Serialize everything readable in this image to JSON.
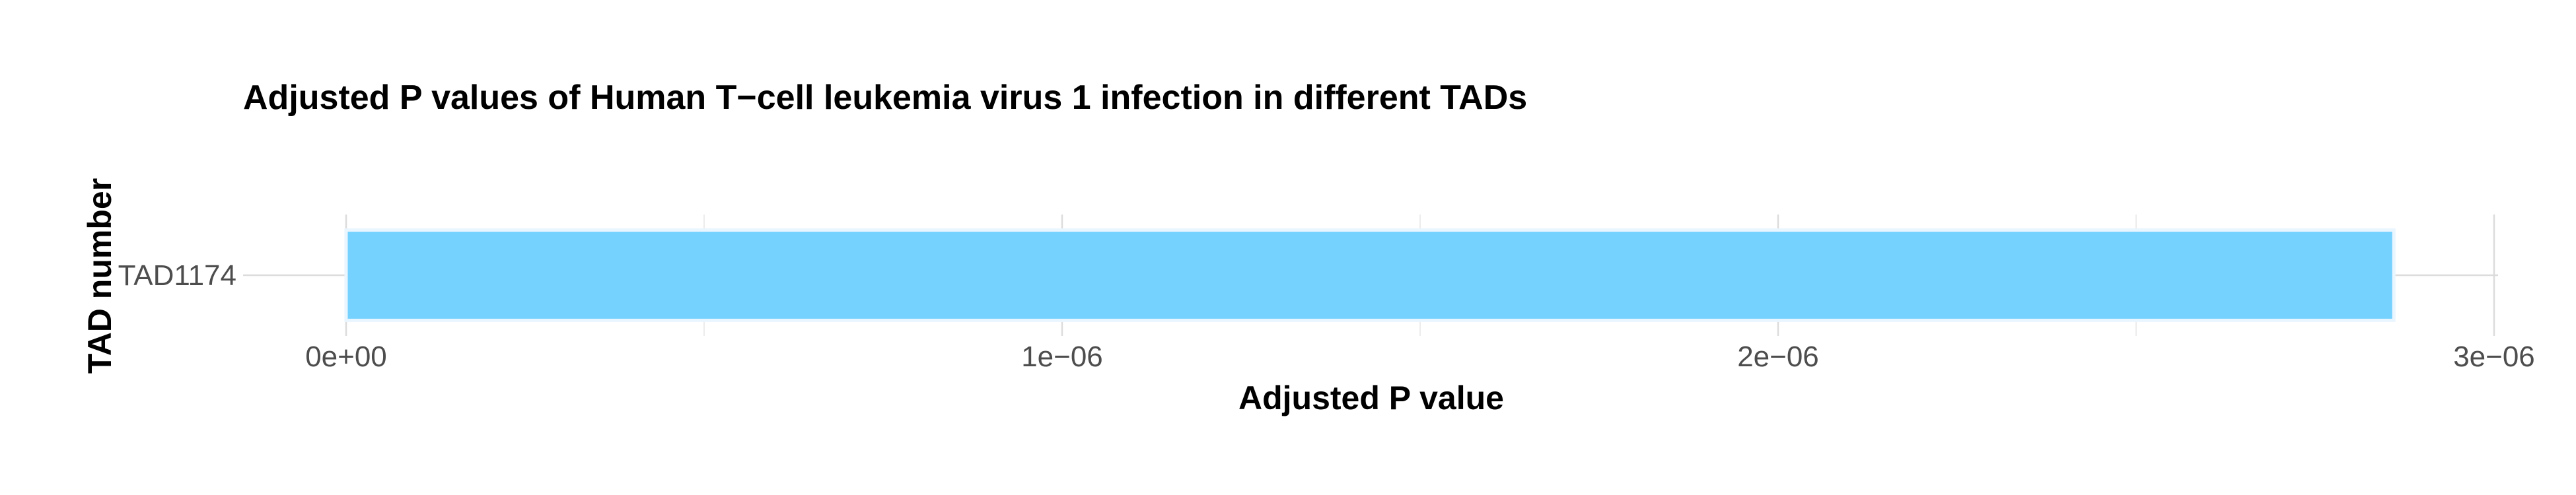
{
  "chart_data": {
    "type": "bar",
    "orientation": "horizontal",
    "title": "Adjusted P values of Human T−cell leukemia virus 1 infection in different TADs",
    "xlabel": "Adjusted P value",
    "ylabel": "TAD number",
    "categories": [
      "TAD1174"
    ],
    "values": [
      2.86e-06
    ],
    "xlim": [
      0,
      3e-06
    ],
    "xticks": [
      0,
      1e-06,
      2e-06,
      3e-06
    ],
    "xtick_labels": [
      "0e+00",
      "1e−06",
      "2e−06",
      "3e−06"
    ],
    "grid": true,
    "legend": "none",
    "bar_color": "#75D1FE",
    "bar_outline_color": "#EAF6FF"
  }
}
